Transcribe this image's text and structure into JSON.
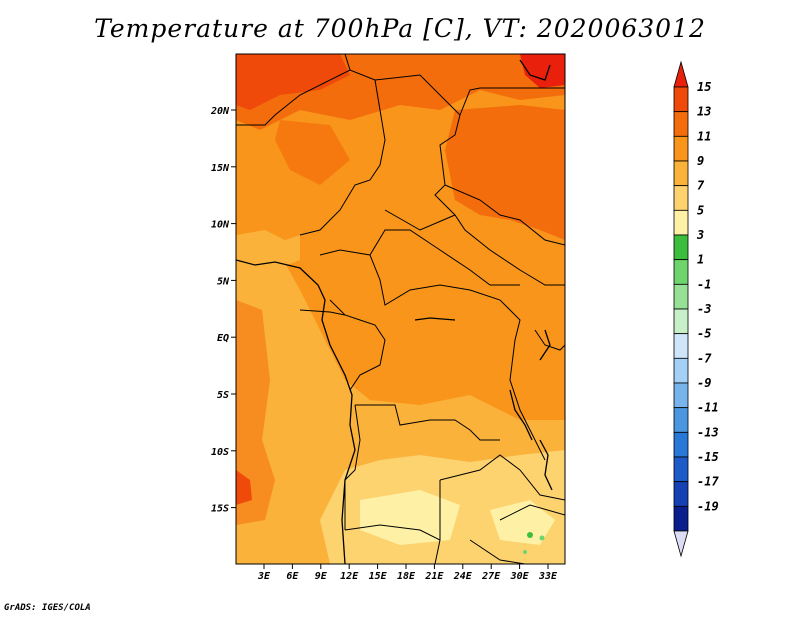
{
  "title": "Temperature at 700hPa [C], VT: 2020063012",
  "footer": "GrADS: IGES/COLA",
  "map": {
    "lat_labels": [
      "20N",
      "15N",
      "10N",
      "5N",
      "EQ",
      "5S",
      "10S",
      "15S"
    ],
    "lon_labels": [
      "3E",
      "6E",
      "9E",
      "12E",
      "15E",
      "18E",
      "21E",
      "24E",
      "27E",
      "30E",
      "33E"
    ]
  },
  "colorbar": {
    "labels": [
      "15",
      "13",
      "11",
      "9",
      "7",
      "5",
      "3",
      "1",
      "-1",
      "-3",
      "-5",
      "-7",
      "-9",
      "-11",
      "-13",
      "-15",
      "-17",
      "-19"
    ],
    "colors": [
      "#e8200c",
      "#f04a0a",
      "#f46d0c",
      "#f8951a",
      "#fab23a",
      "#fcd36f",
      "#fef1a6",
      "#3cbe3c",
      "#6ed46e",
      "#96e196",
      "#c8f0c8",
      "#cfe6fa",
      "#a5d0f5",
      "#78b4ec",
      "#4b96e1",
      "#2878d7",
      "#1e5ac8",
      "#1441b4",
      "#0a1e8c",
      "#dcdcf5"
    ]
  }
}
